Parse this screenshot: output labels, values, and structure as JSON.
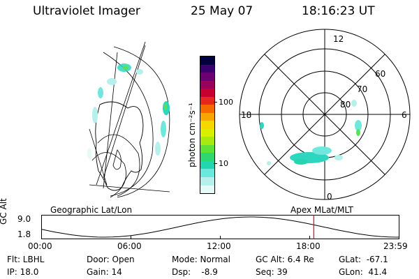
{
  "header": {
    "instrument": "Ultraviolet Imager",
    "date": "25 May 07",
    "time": "18:16:23 UT"
  },
  "geo_panel": {
    "title": "Geographic Lat/Lon"
  },
  "colorbar": {
    "label": "photon cm⁻²s⁻¹",
    "ticks": [
      "100",
      "10"
    ],
    "colors": [
      "#000040",
      "#3a006e",
      "#6a0072",
      "#9a005a",
      "#c80032",
      "#e62818",
      "#f56a00",
      "#f7a500",
      "#f4d800",
      "#d8f000",
      "#a8ea10",
      "#62e03a",
      "#2ed870",
      "#22d6b0",
      "#70e6dc",
      "#b6f0ec",
      "#e6faf8"
    ]
  },
  "polar_plot": {
    "mlt_labels": [
      "12",
      "18",
      "6",
      "0"
    ],
    "lat_labels": [
      "60",
      "70",
      "80"
    ],
    "title": "Apex MLat/MLT"
  },
  "altitude_plot": {
    "ylabel": "GC Alt",
    "y_ticks": [
      "9.0",
      "1.8"
    ],
    "x_ticks": [
      "00:00",
      "06:00",
      "12:00",
      "18:00",
      "23:59"
    ],
    "current_time_hours": 18.27
  },
  "status": {
    "flt": "Flt: LBHL",
    "ip": "IP: 18.0",
    "door": "Door: Open",
    "gain": "Gain: 14",
    "mode": "Mode: Normal",
    "dsp": "Dsp:    -8.9",
    "gc_alt": "GC Alt: 6.4 Re",
    "seq": "Seq: 39",
    "glat": "GLat:  -67.1",
    "glon": "GLon:  41.4"
  },
  "colors": {
    "marker": "#ee0000",
    "aurora_main": "#2ed6c0",
    "aurora_core": "#5ae05a"
  }
}
